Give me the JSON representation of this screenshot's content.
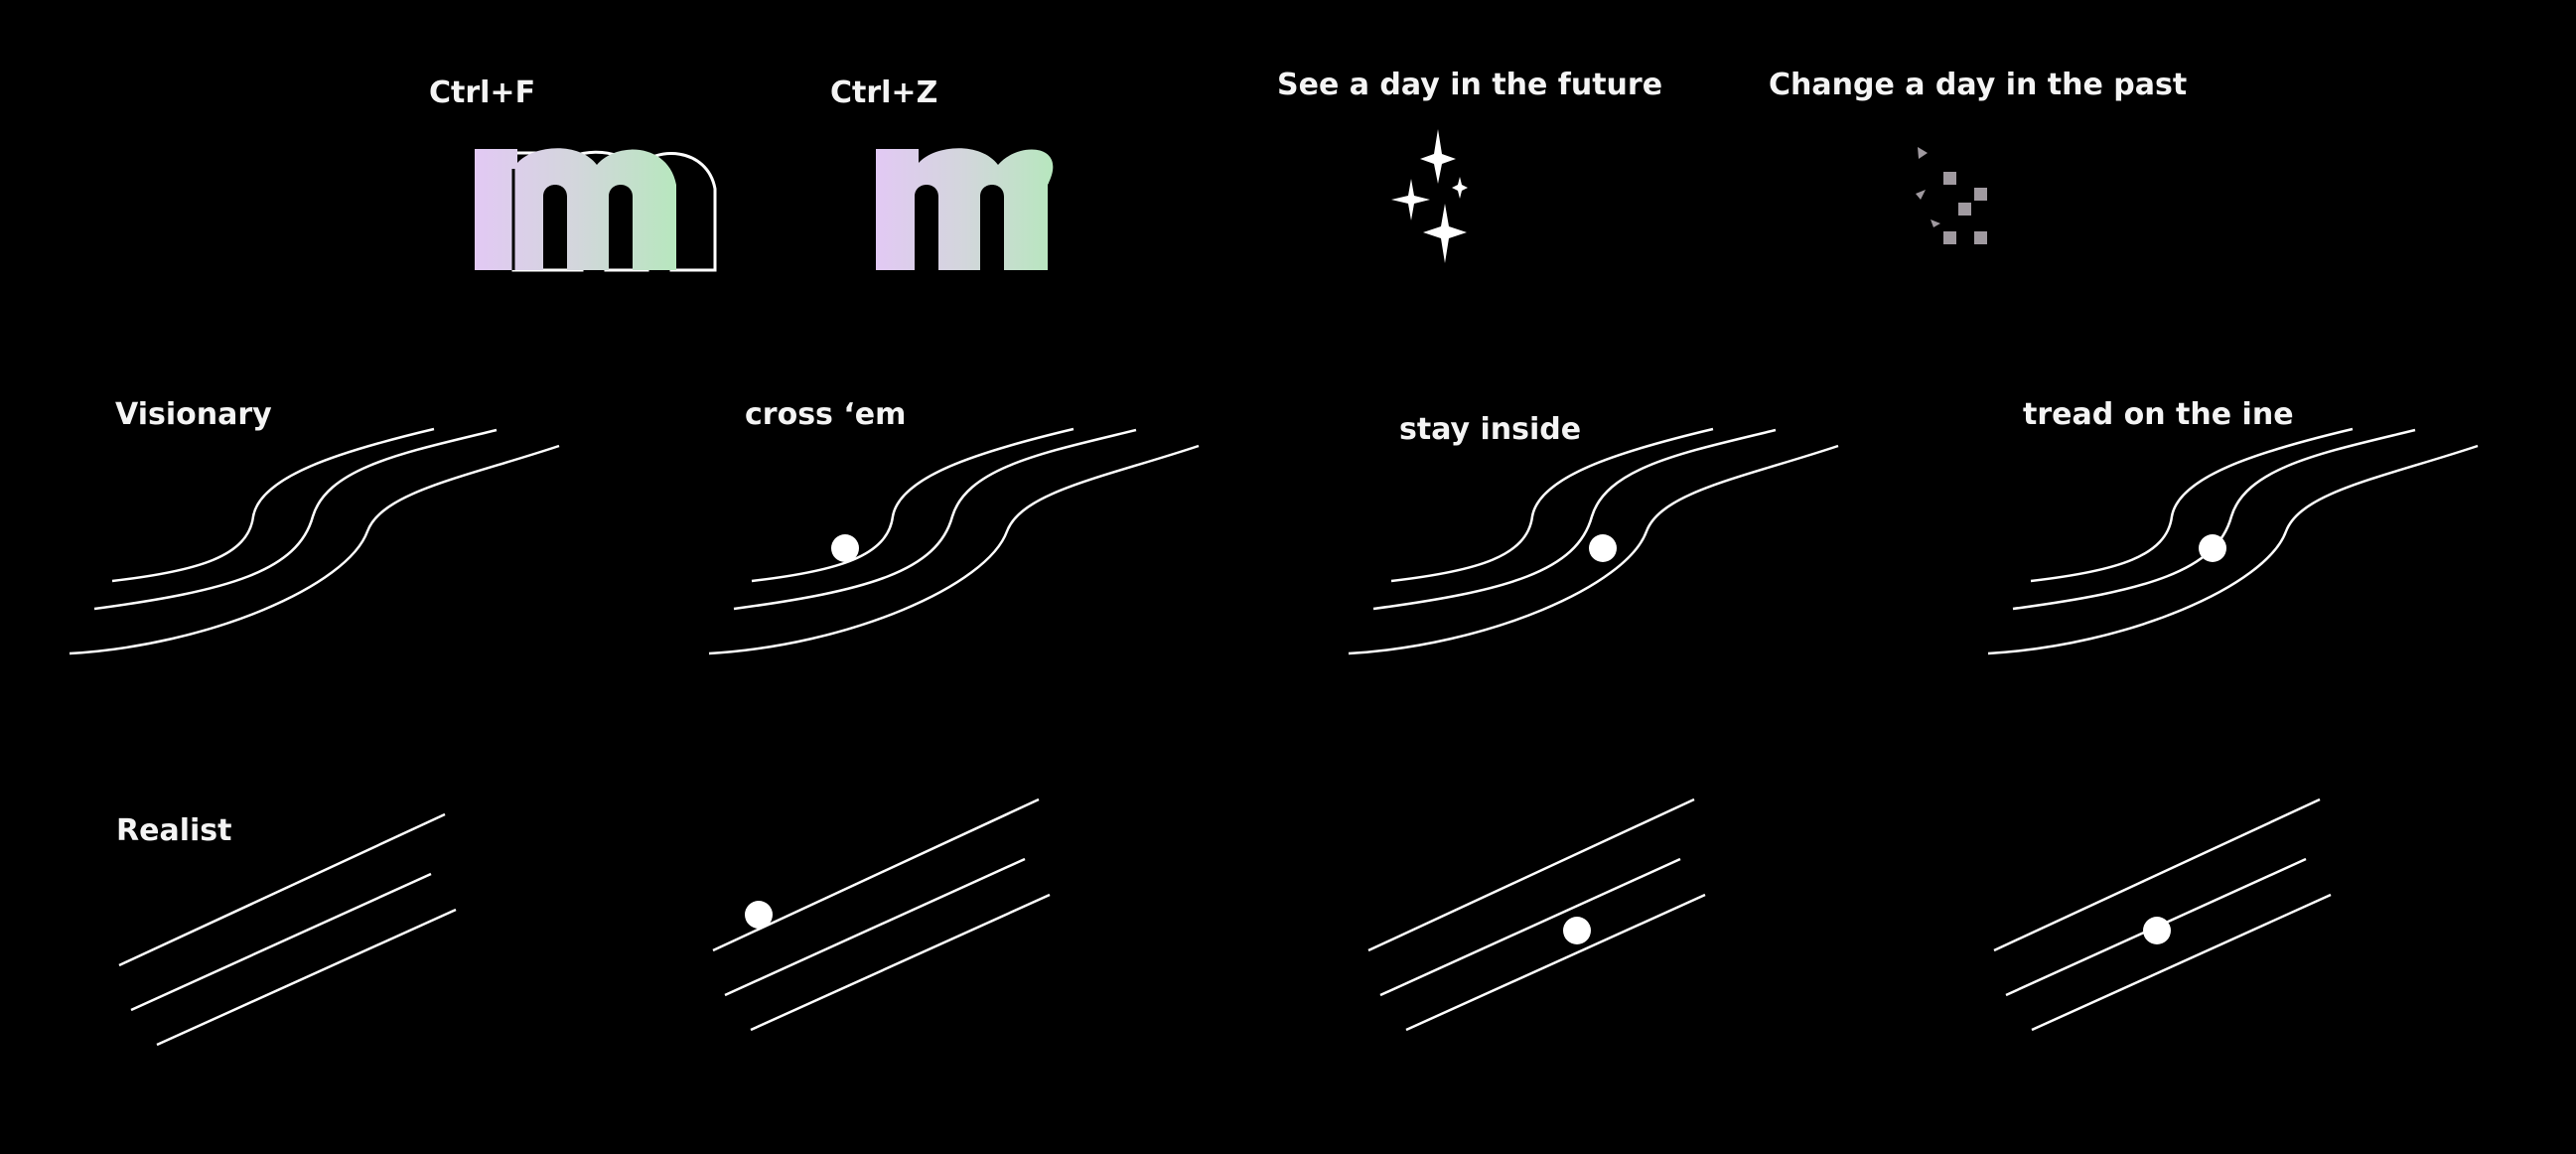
{
  "top": {
    "ctrl_f": "Ctrl+F",
    "ctrl_z": "Ctrl+Z",
    "future": "See a day in the future",
    "past": "Change a day in the past"
  },
  "logo_letter": "m",
  "gradient": {
    "start": "#e2c9f4",
    "end": "#b7e7be"
  },
  "rows": {
    "visionary": "Visionary",
    "realist": "Realist"
  },
  "columns": [
    "cross ‘em",
    "stay inside",
    "tread on the ine"
  ],
  "dot_positions": [
    "none",
    "outside-lines",
    "between-lines",
    "on-line"
  ],
  "icons": [
    "sparkles-icon",
    "pixel-trail-icon"
  ]
}
